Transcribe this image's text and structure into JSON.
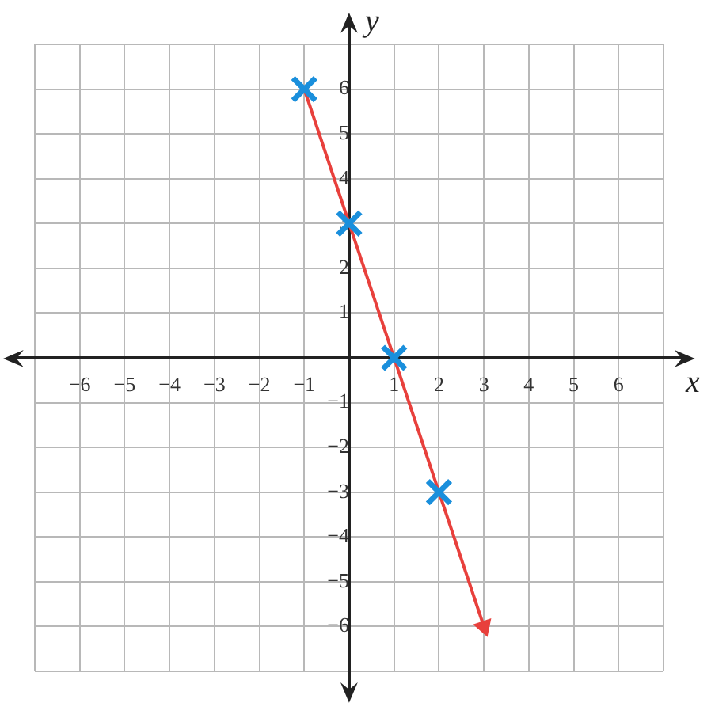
{
  "chart_data": {
    "type": "scatter",
    "xlabel": "x",
    "ylabel": "y",
    "xlim": [
      -7,
      7
    ],
    "ylim": [
      -7,
      7
    ],
    "xticks": [
      {
        "value": -7,
        "label": null
      },
      -6,
      -5,
      -4,
      -3,
      -2,
      -1,
      {
        "value": 0,
        "label": null
      },
      1,
      2,
      3,
      4,
      5,
      6,
      {
        "value": 7,
        "label": null
      }
    ],
    "yticks": [
      {
        "value": -7,
        "label": null
      },
      -6,
      -5,
      -4,
      -3,
      -2,
      -1,
      {
        "value": 0,
        "label": null
      },
      1,
      2,
      3,
      4,
      5,
      6,
      {
        "value": 7,
        "label": null
      }
    ],
    "grid": true,
    "legend": false,
    "series": [
      {
        "type": "line",
        "color": "#e8403c",
        "x": [
          -1,
          3
        ],
        "values": [
          6,
          -6
        ],
        "line_style": "solid"
      },
      {
        "type": "scatter",
        "color": "#1a8fdc",
        "x": [
          -1,
          0,
          1,
          2
        ],
        "values": [
          6,
          3,
          0,
          -3
        ],
        "marker": "cross"
      }
    ]
  }
}
